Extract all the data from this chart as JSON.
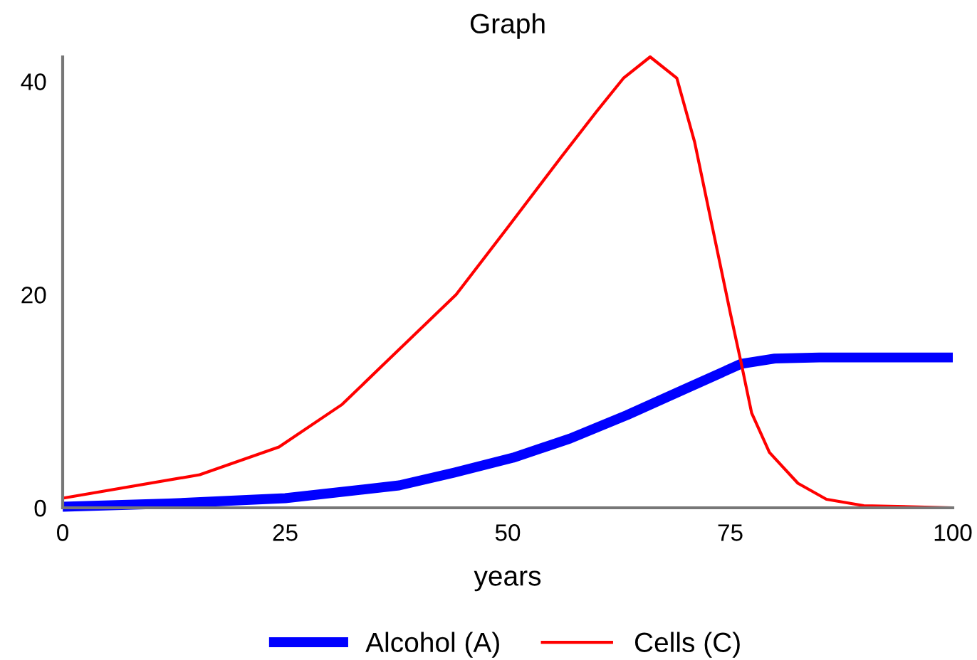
{
  "chart_data": {
    "type": "line",
    "title": "Graph",
    "xlabel": "years",
    "xlim": [
      0,
      100
    ],
    "ylim": [
      0,
      42.3
    ],
    "xticks": [
      0,
      25,
      50,
      75,
      100
    ],
    "yticks": [
      0,
      20,
      40
    ],
    "grid": false,
    "legend": "bottom",
    "marker": "none",
    "line_style": "solid",
    "series": [
      {
        "name": "Alcohol (A)",
        "color": "#0000ff",
        "x": [
          0,
          12,
          25,
          37.8,
          44,
          50.6,
          57,
          63.4,
          69.8,
          76.2,
          80,
          85,
          90,
          100
        ],
        "values": [
          0.1,
          0.4,
          0.9,
          2.1,
          3.3,
          4.7,
          6.5,
          8.7,
          11.1,
          13.5,
          14.0,
          14.1,
          14.1,
          14.1
        ]
      },
      {
        "name": "Cells (C)",
        "color": "#ff0000",
        "x": [
          0,
          15.4,
          24.3,
          31.4,
          37.1,
          44.2,
          50,
          56,
          60,
          63,
          66,
          69,
          71,
          73,
          75,
          76.3,
          77.4,
          79.4,
          82.6,
          85.8,
          90,
          100
        ],
        "values": [
          0.9,
          3.1,
          5.7,
          9.7,
          14.3,
          20,
          26.3,
          32.9,
          37.2,
          40.3,
          42.3,
          40.3,
          34.3,
          26.3,
          18.3,
          13.3,
          8.9,
          5.2,
          2.3,
          0.8,
          0.2,
          0
        ]
      }
    ]
  }
}
